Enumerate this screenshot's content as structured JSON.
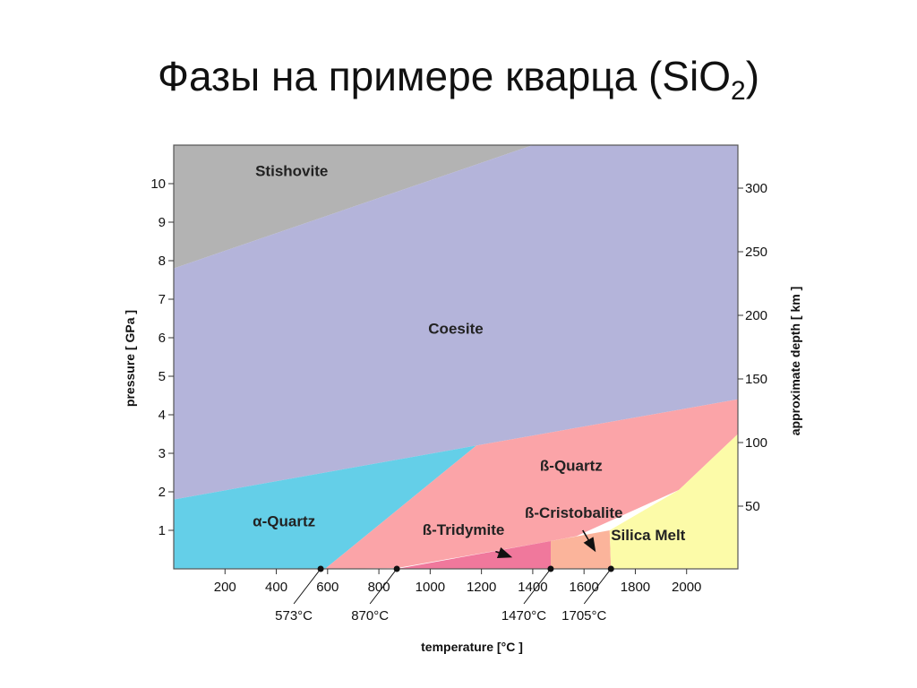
{
  "slide": {
    "title_main": "Фазы на примере кварца (SiO",
    "title_sub": "2",
    "title_end": ")"
  },
  "chart_data": {
    "type": "phase-diagram",
    "x_axis": {
      "label": "temperature [°C ]",
      "range": [
        0,
        2200
      ],
      "ticks": [
        "200",
        "400",
        "600",
        "800",
        "1000",
        "1200",
        "1400",
        "1600",
        "1800",
        "2000"
      ]
    },
    "y_axis_left": {
      "label": "pressure [ GPa ]",
      "range": [
        0,
        11
      ],
      "ticks": [
        "1",
        "2",
        "3",
        "4",
        "5",
        "6",
        "7",
        "8",
        "9",
        "10"
      ]
    },
    "y_axis_right": {
      "label": "approximate depth [ km ]",
      "ticks": [
        "50",
        "100",
        "150",
        "200",
        "250",
        "300"
      ]
    },
    "phases": [
      {
        "name": "Stishovite",
        "color": "#b3b3b3",
        "polygon": [
          [
            0,
            7.8
          ],
          [
            0,
            11
          ],
          [
            1400,
            11
          ]
        ],
        "label_at": [
          460,
          10.2
        ]
      },
      {
        "name": "Coesite",
        "color": "#b4b4da",
        "polygon": [
          [
            0,
            1.8
          ],
          [
            0,
            7.8
          ],
          [
            1400,
            11
          ],
          [
            2200,
            11
          ],
          [
            2200,
            4.4
          ],
          [
            1180,
            3.2
          ]
        ],
        "label_at": [
          1100,
          6.1
        ]
      },
      {
        "name": "α-Quartz",
        "color": "#64cfe8",
        "polygon": [
          [
            0,
            0
          ],
          [
            0,
            1.8
          ],
          [
            1180,
            3.2
          ],
          [
            590,
            0
          ]
        ],
        "label_at": [
          430,
          1.1
        ]
      },
      {
        "name": "ß-Quartz",
        "color": "#fba4a8",
        "polygon": [
          [
            590,
            0
          ],
          [
            1180,
            3.2
          ],
          [
            2200,
            4.4
          ],
          [
            2200,
            3.5
          ],
          [
            1970,
            2.05
          ],
          [
            1570,
            0.85
          ],
          [
            1470,
            0.72
          ],
          [
            870,
            0.02
          ]
        ],
        "label_at": [
          1550,
          2.55
        ]
      },
      {
        "name": "ß-Tridymite",
        "color": "#f0789c",
        "polygon": [
          [
            870,
            0
          ],
          [
            1470,
            0.72
          ],
          [
            1470,
            0
          ]
        ],
        "label_at": [
          1130,
          0.88
        ]
      },
      {
        "name": "ß-Cristobalite",
        "color": "#fbb49b",
        "polygon": [
          [
            1470,
            0
          ],
          [
            1470,
            0.72
          ],
          [
            1700,
            1.0
          ],
          [
            1705,
            0
          ]
        ],
        "label_at": [
          1560,
          1.33
        ]
      },
      {
        "name": "Silica Melt",
        "color": "#fcfba8",
        "polygon": [
          [
            1705,
            0
          ],
          [
            1700,
            1.0
          ],
          [
            1970,
            2.05
          ],
          [
            2200,
            3.5
          ],
          [
            2200,
            0
          ]
        ],
        "label_at": [
          1850,
          0.75
        ]
      }
    ],
    "markers": [
      {
        "label": "573°C",
        "x": 573
      },
      {
        "label": "870°C",
        "x": 870
      },
      {
        "label": "1470°C",
        "x": 1470
      },
      {
        "label": "1705°C",
        "x": 1705
      }
    ],
    "arrows": [
      {
        "from": [
          1255,
          0.45
        ],
        "to": [
          1310,
          0.32
        ]
      },
      {
        "from": [
          1595,
          1.0
        ],
        "to": [
          1640,
          0.5
        ]
      }
    ]
  }
}
